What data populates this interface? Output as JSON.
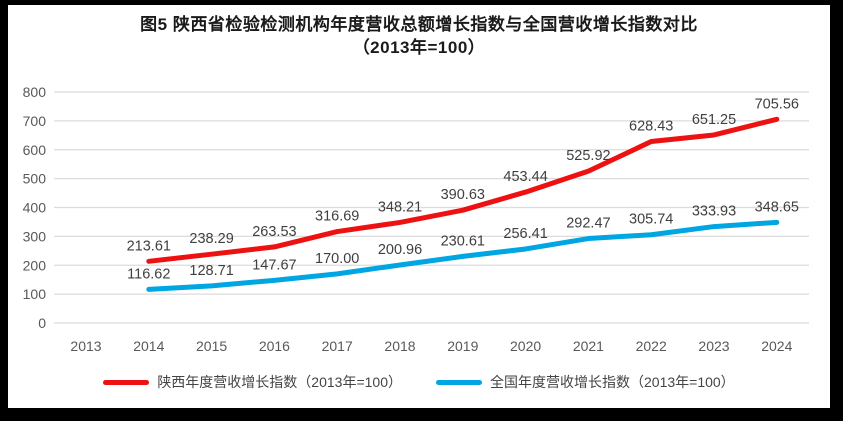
{
  "title": {
    "line1": "图5  陕西省检验检测机构年度营收总额增长指数与全国营收增长指数对比",
    "line2": "（2013年=100）"
  },
  "chart_data": {
    "type": "line",
    "categories": [
      "2013",
      "2014",
      "2015",
      "2016",
      "2017",
      "2018",
      "2019",
      "2020",
      "2021",
      "2022",
      "2023",
      "2024"
    ],
    "series": [
      {
        "name": "陕西年度营收增长指数（2013年=100）",
        "color": "#EE1111",
        "values": [
          null,
          213.61,
          238.29,
          263.53,
          316.69,
          348.21,
          390.63,
          453.44,
          525.92,
          628.43,
          651.25,
          705.56
        ]
      },
      {
        "name": "全国年度营收增长指数（2013年=100）",
        "color": "#00A6E1",
        "values": [
          null,
          116.62,
          128.71,
          147.67,
          170.0,
          200.96,
          230.61,
          256.41,
          292.47,
          305.74,
          333.93,
          348.65
        ]
      }
    ],
    "ylim": [
      0,
      800
    ],
    "yticks": [
      0,
      100,
      200,
      300,
      400,
      500,
      600,
      700,
      800
    ],
    "grid": true,
    "data_labels": true,
    "data_label_decimals": 2,
    "legend_position": "bottom",
    "styles": {
      "grid_color": "#DCDCDC",
      "axis_label_color": "#595959",
      "data_label_color": "#3F3F3F",
      "title_color": "#1A1A1A",
      "frame_color": "#000000",
      "background": "#FFFFFF",
      "line_width": 5
    }
  }
}
